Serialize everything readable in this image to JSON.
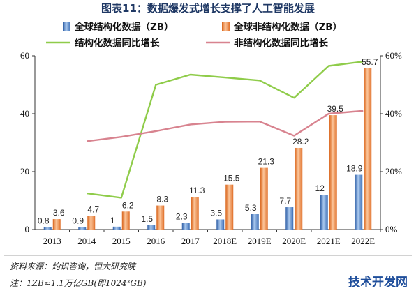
{
  "chart_data": {
    "type": "bar",
    "title": "图表11：数据爆发式增长支撑了人工智能发展",
    "categories": [
      "2013",
      "2014",
      "2015",
      "2016",
      "2017",
      "2018E",
      "2019E",
      "2020E",
      "2021E",
      "2022E"
    ],
    "ylim_left": [
      0,
      60
    ],
    "ylim_right": [
      0,
      60
    ],
    "yticks_left": [
      "0",
      "20",
      "40",
      "60"
    ],
    "yticks_right": [
      "0%",
      "20%",
      "40%",
      "60%"
    ],
    "grid": false,
    "legend_position": "top",
    "series": [
      {
        "name": "全球结构化数据（ZB）",
        "type": "bar",
        "axis": "left",
        "values": [
          0.8,
          0.9,
          1,
          1.5,
          2.3,
          3.5,
          5.3,
          7.7,
          12,
          18.9
        ],
        "labels": [
          "0.8",
          "0.9",
          "1",
          "1.5",
          "2.3",
          "3.5",
          "5.3",
          "7.7",
          "12",
          "18.9"
        ]
      },
      {
        "name": "全球非结构化数据（ZB）",
        "type": "bar",
        "axis": "left",
        "values": [
          3.6,
          4.7,
          6.2,
          8.3,
          11.3,
          15.5,
          21.3,
          28.2,
          39.5,
          55.7
        ],
        "labels": [
          "3.6",
          "4.7",
          "6.2",
          "8.3",
          "11.3",
          "15.5",
          "21.3",
          "28.2",
          "39.5",
          "55.7"
        ]
      },
      {
        "name": "结构化数据同比增长",
        "type": "line",
        "axis": "right",
        "values": [
          null,
          12.5,
          11,
          50,
          53.5,
          52.5,
          51.5,
          45.5,
          56.5,
          58
        ]
      },
      {
        "name": "非结构化数据同比增长",
        "type": "line",
        "axis": "right",
        "values": [
          null,
          30.5,
          32,
          34,
          36.3,
          37.2,
          37.3,
          32.4,
          40,
          41
        ]
      }
    ],
    "colors": {
      "structured_bar": "#3f78c4",
      "unstructured_bar": "#ed7d31",
      "structured_line": "#8fcc4a",
      "unstructured_line": "#d8838f"
    }
  },
  "footer": {
    "source": "资料来源：灼识咨询，恒大研究院",
    "note": "注：1ZB≈1.1万亿GB(即1024³GB)",
    "watermark": "技术开发网"
  }
}
